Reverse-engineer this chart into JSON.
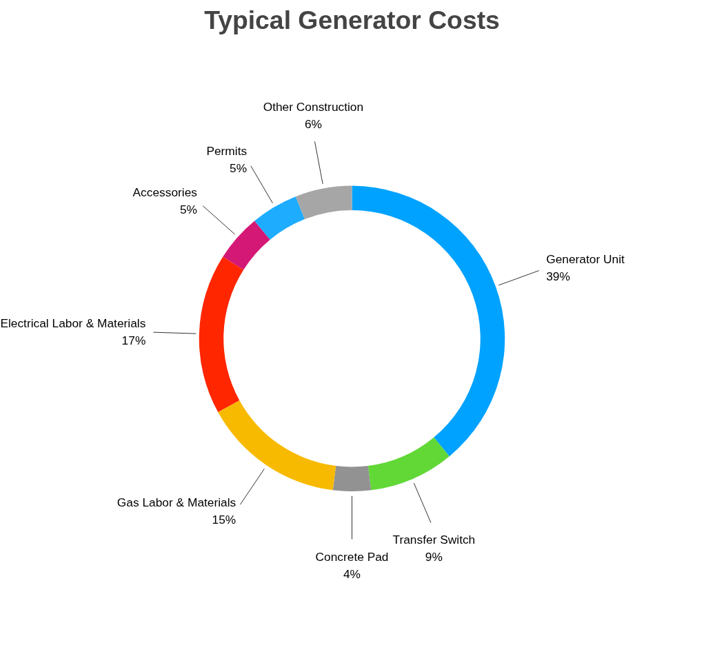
{
  "chart_data": {
    "type": "donut",
    "title": "Typical Generator Costs",
    "categories": [
      "Generator Unit",
      "Transfer Switch",
      "Concrete Pad",
      "Gas Labor & Materials",
      "Electrical Labor & Materials",
      "Accessories",
      "Permits",
      "Other Construction"
    ],
    "values": [
      39,
      9,
      4,
      15,
      17,
      5,
      5,
      6
    ],
    "value_labels": [
      "39%",
      "9%",
      "4%",
      "15%",
      "17%",
      "5%",
      "5%",
      "6%"
    ],
    "colors": [
      "#00a2ff",
      "#61d836",
      "#929292",
      "#f8ba00",
      "#ff2600",
      "#d41876",
      "#1eacff",
      "#a6a6a6"
    ],
    "legend": false
  }
}
